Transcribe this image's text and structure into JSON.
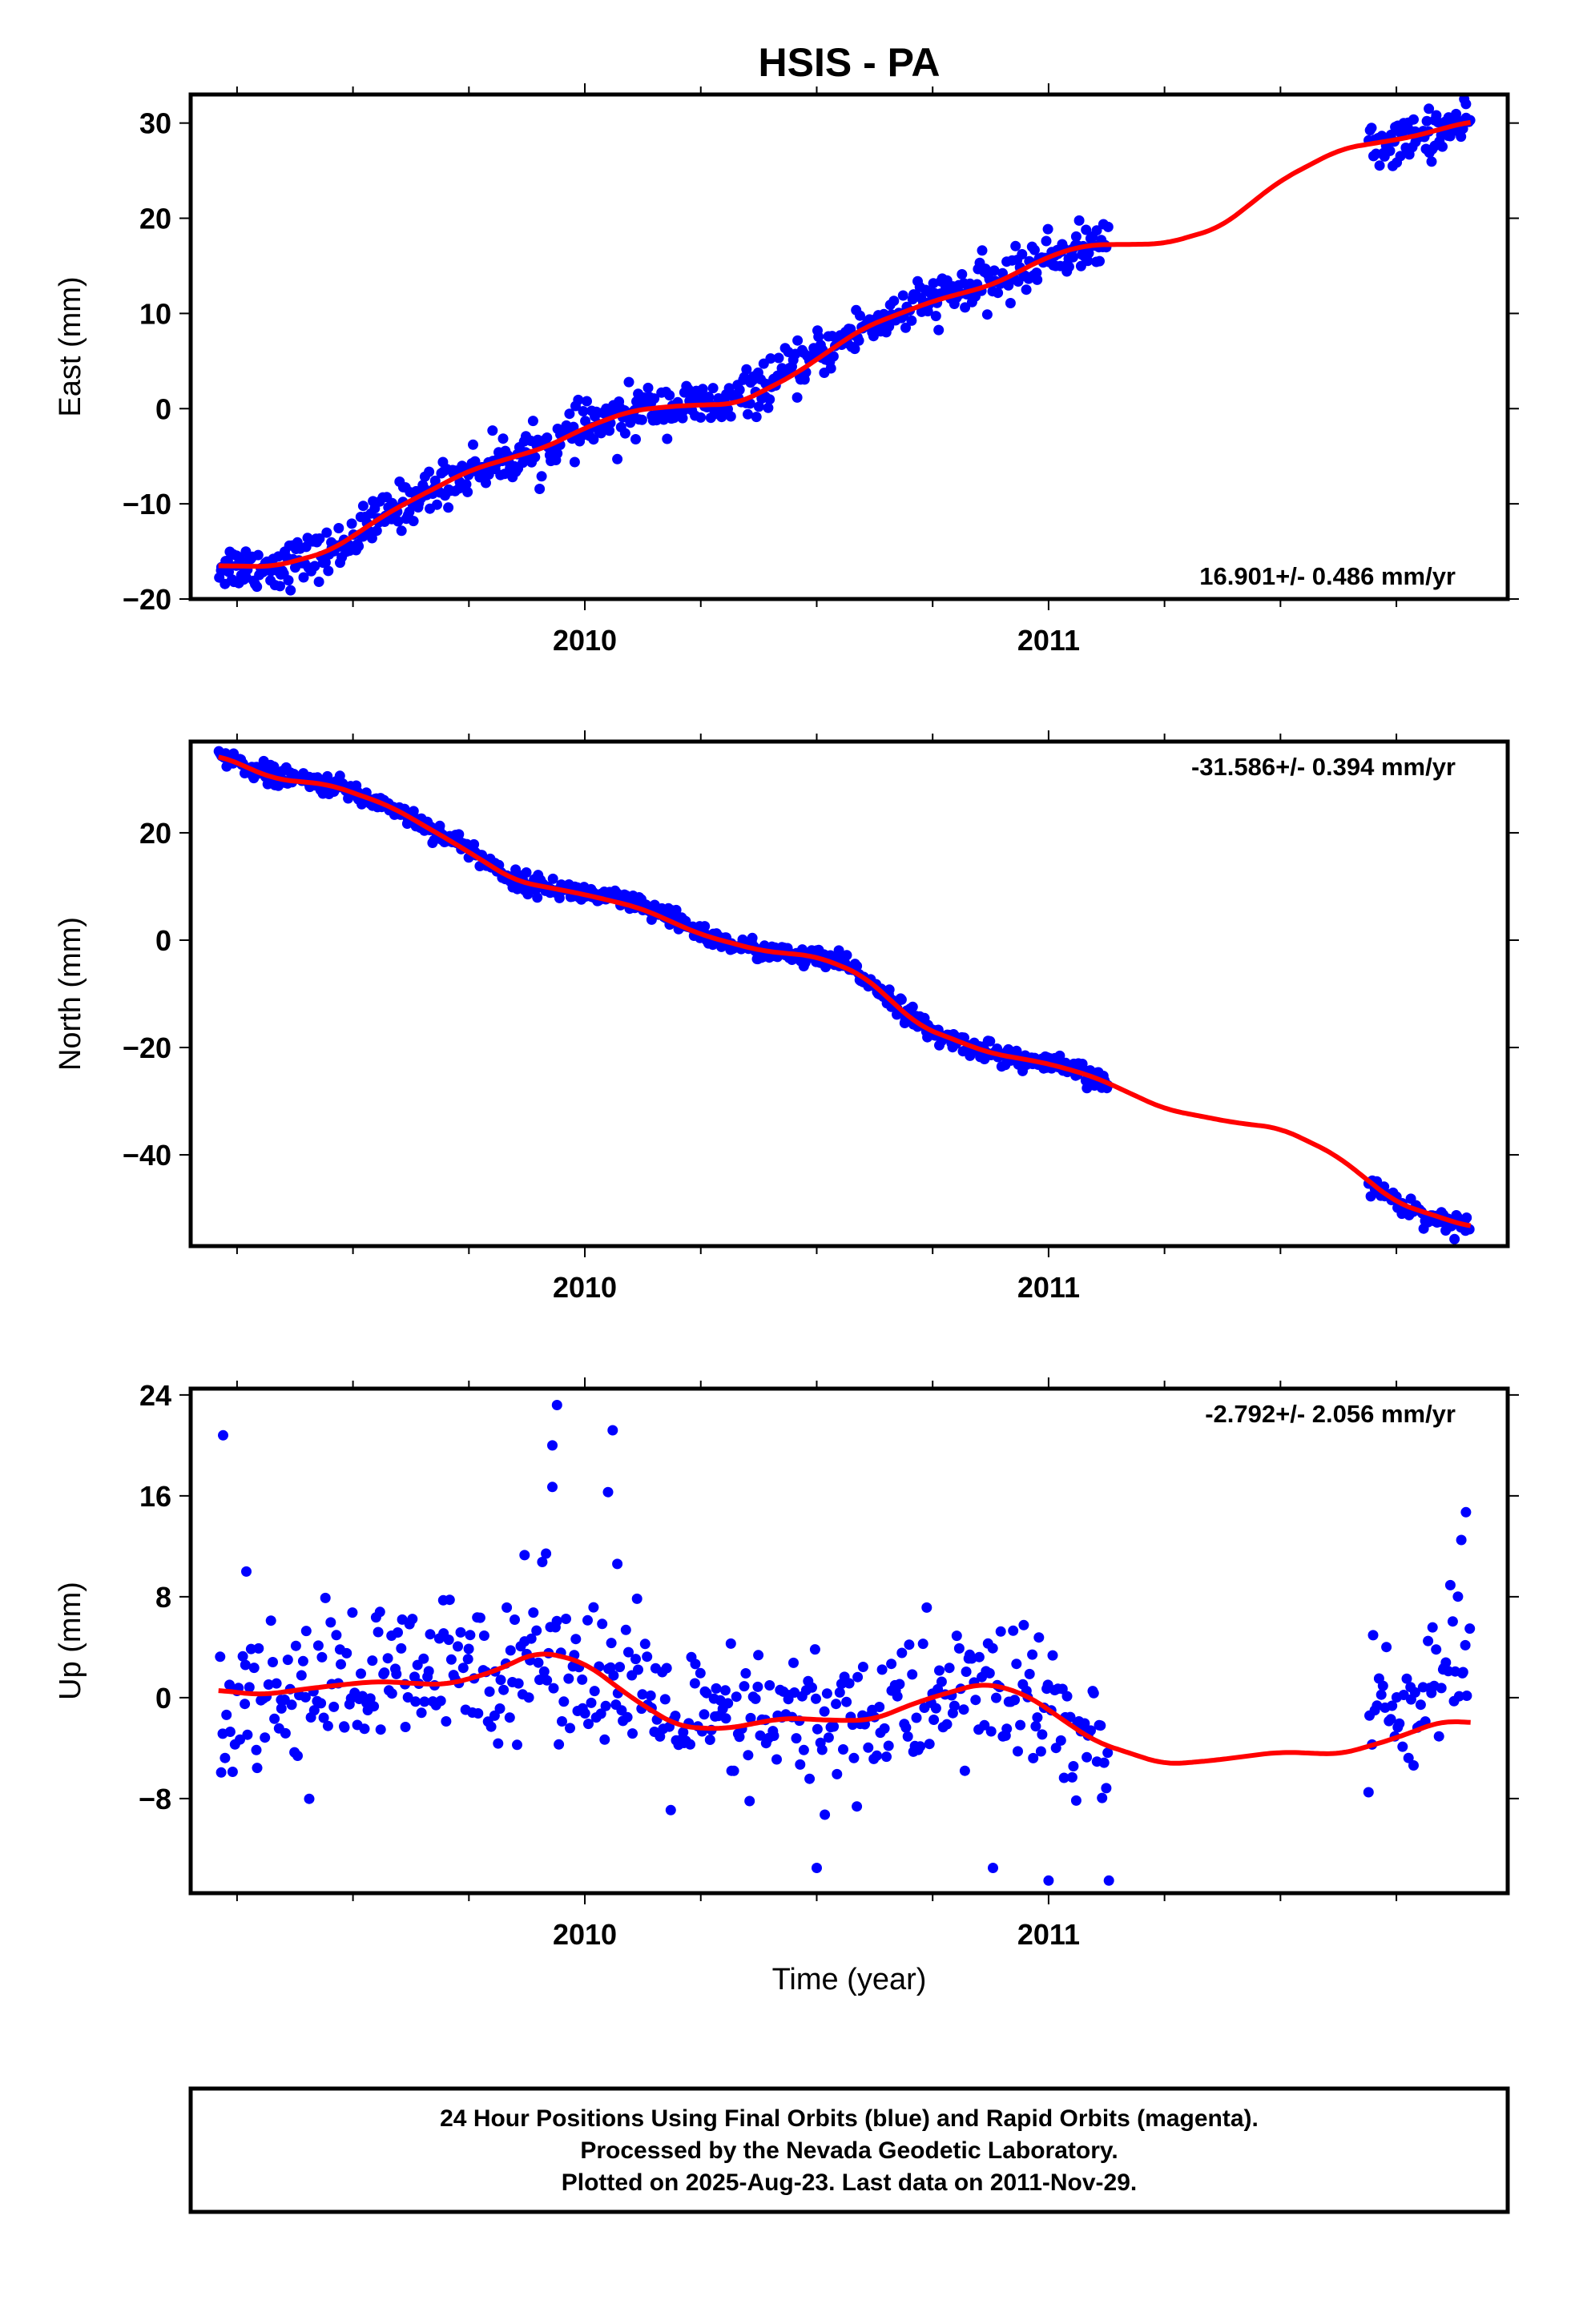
{
  "title": "HSIS - PA",
  "footer": {
    "line1": "24 Hour Positions Using Final Orbits (blue) and Rapid Orbits (magenta).",
    "line2": "Processed by the Nevada Geodetic Laboratory.",
    "line3": "Plotted on 2025-Aug-23. Last data on 2011-Nov-29."
  },
  "colors": {
    "data": "#0000ff",
    "fit": "#ff0000",
    "frame": "#000000"
  },
  "chart_data": [
    {
      "type": "scatter",
      "ylabel": "East (mm)",
      "xlabel": "",
      "xlim": [
        2009.15,
        2011.99
      ],
      "ylim": [
        -20,
        33
      ],
      "yticks": [
        30,
        20,
        10,
        0,
        -10,
        -20
      ],
      "ytick_labels": [
        "30",
        "20",
        "10",
        "0",
        "−10",
        "−20"
      ],
      "xticks": [
        2010,
        2011
      ],
      "xtick_labels": [
        "2010",
        "2011"
      ],
      "rate": "16.901+/- 0.486 mm/yr",
      "rate_position": "bottom-right",
      "series": [
        {
          "kind": "points",
          "segments": [
            [
              2009.21,
              2011.13
            ],
            [
              2011.69,
              2011.91
            ]
          ],
          "trend": [
            [
              2009.21,
              -16.5
            ],
            [
              2009.33,
              -16.6
            ],
            [
              2009.45,
              -15.2
            ],
            [
              2009.58,
              -10.8
            ],
            [
              2009.75,
              -6.5
            ],
            [
              2009.92,
              -4.0
            ],
            [
              2010.0,
              -2.0
            ],
            [
              2010.15,
              0.3
            ],
            [
              2010.3,
              0.3
            ],
            [
              2010.45,
              4.0
            ],
            [
              2010.6,
              8.5
            ],
            [
              2010.75,
              11.5
            ],
            [
              2010.9,
              13.5
            ],
            [
              2011.0,
              16.0
            ],
            [
              2011.13,
              17.5
            ],
            [
              2011.69,
              27.5
            ],
            [
              2011.8,
              28.5
            ],
            [
              2011.91,
              30.0
            ]
          ],
          "scatter": 1.2,
          "count": 720,
          "outliers": [
            [
              2010.07,
              -5.3
            ],
            [
              2011.82,
              31.5
            ],
            [
              2011.9,
              32.0
            ]
          ]
        },
        {
          "kind": "fit",
          "points": [
            [
              2009.21,
              -16.5
            ],
            [
              2009.33,
              -16.6
            ],
            [
              2009.45,
              -15.0
            ],
            [
              2009.58,
              -10.8
            ],
            [
              2009.75,
              -6.5
            ],
            [
              2009.92,
              -4.0
            ],
            [
              2010.0,
              -2.0
            ],
            [
              2010.1,
              -0.2
            ],
            [
              2010.2,
              0.3
            ],
            [
              2010.33,
              0.5
            ],
            [
              2010.45,
              3.5
            ],
            [
              2010.6,
              8.5
            ],
            [
              2010.75,
              11.3
            ],
            [
              2010.88,
              13.0
            ],
            [
              2011.0,
              16.0
            ],
            [
              2011.08,
              17.2
            ],
            [
              2011.25,
              17.3
            ],
            [
              2011.37,
              19.0
            ],
            [
              2011.5,
              24.0
            ],
            [
              2011.63,
              27.3
            ],
            [
              2011.78,
              28.5
            ],
            [
              2011.91,
              30.2
            ]
          ]
        }
      ]
    },
    {
      "type": "scatter",
      "ylabel": "North (mm)",
      "xlabel": "",
      "xlim": [
        2009.15,
        2011.99
      ],
      "ylim": [
        -57,
        37
      ],
      "yticks": [
        20,
        0,
        -20,
        -40
      ],
      "ytick_labels": [
        "20",
        "0",
        "−20",
        "−40"
      ],
      "xticks": [
        2010,
        2011
      ],
      "xtick_labels": [
        "2010",
        "2011"
      ],
      "rate": "-31.586+/- 0.394 mm/yr",
      "rate_position": "top-right",
      "series": [
        {
          "kind": "points",
          "segments": [
            [
              2009.21,
              2011.13
            ],
            [
              2011.69,
              2011.91
            ]
          ],
          "trend": [
            [
              2009.21,
              34.5
            ],
            [
              2009.33,
              30.5
            ],
            [
              2009.45,
              29.0
            ],
            [
              2009.58,
              25.0
            ],
            [
              2009.75,
              17.0
            ],
            [
              2009.85,
              11.0
            ],
            [
              2009.95,
              9.5
            ],
            [
              2010.1,
              7.0
            ],
            [
              2010.2,
              3.5
            ],
            [
              2010.3,
              -0.5
            ],
            [
              2010.45,
              -3.0
            ],
            [
              2010.55,
              -4.0
            ],
            [
              2010.62,
              -8.0
            ],
            [
              2010.75,
              -17.5
            ],
            [
              2010.9,
              -21.5
            ],
            [
              2011.05,
              -24.0
            ],
            [
              2011.13,
              -27.0
            ],
            [
              2011.69,
              -45.5
            ],
            [
              2011.8,
              -51.0
            ],
            [
              2011.91,
              -53.5
            ]
          ],
          "scatter": 0.9,
          "count": 740,
          "outliers": []
        },
        {
          "kind": "fit",
          "points": [
            [
              2009.21,
              34.5
            ],
            [
              2009.33,
              30.0
            ],
            [
              2009.45,
              29.0
            ],
            [
              2009.58,
              25.0
            ],
            [
              2009.72,
              18.0
            ],
            [
              2009.85,
              11.0
            ],
            [
              2010.0,
              8.5
            ],
            [
              2010.12,
              6.0
            ],
            [
              2010.25,
              1.0
            ],
            [
              2010.38,
              -2.0
            ],
            [
              2010.5,
              -3.0
            ],
            [
              2010.6,
              -6.5
            ],
            [
              2010.72,
              -16.0
            ],
            [
              2010.87,
              -21.0
            ],
            [
              2011.0,
              -23.0
            ],
            [
              2011.1,
              -25.5
            ],
            [
              2011.25,
              -31.5
            ],
            [
              2011.4,
              -34.0
            ],
            [
              2011.5,
              -35.0
            ],
            [
              2011.62,
              -40.0
            ],
            [
              2011.75,
              -49.0
            ],
            [
              2011.91,
              -53.5
            ]
          ]
        }
      ]
    },
    {
      "type": "scatter",
      "ylabel": "Up (mm)",
      "xlabel": "Time (year)",
      "xlim": [
        2009.15,
        2011.99
      ],
      "ylim": [
        -15.5,
        24.5
      ],
      "yticks": [
        24,
        16,
        8,
        0,
        -8
      ],
      "ytick_labels": [
        "24",
        "16",
        "8",
        "0",
        "−8"
      ],
      "xticks": [
        2010,
        2011
      ],
      "xtick_labels": [
        "2010",
        "2011"
      ],
      "rate": "-2.792+/- 2.056 mm/yr",
      "rate_position": "top-right",
      "series": [
        {
          "kind": "points",
          "segments": [
            [
              2009.21,
              2011.13
            ],
            [
              2011.69,
              2011.91
            ]
          ],
          "trend": [
            [
              2009.21,
              0.5
            ],
            [
              2009.33,
              0.4
            ],
            [
              2009.45,
              1.0
            ],
            [
              2009.6,
              1.3
            ],
            [
              2009.75,
              2.0
            ],
            [
              2009.9,
              3.8
            ],
            [
              2010.0,
              2.8
            ],
            [
              2010.12,
              -0.5
            ],
            [
              2010.25,
              -2.5
            ],
            [
              2010.4,
              -2.0
            ],
            [
              2010.55,
              -2.0
            ],
            [
              2010.72,
              -0.5
            ],
            [
              2010.88,
              1.0
            ],
            [
              2011.0,
              -1.0
            ],
            [
              2011.13,
              -5.0
            ],
            [
              2011.69,
              -1.5
            ],
            [
              2011.8,
              0.0
            ],
            [
              2011.91,
              4.0
            ]
          ],
          "scatter": 3.0,
          "count": 520,
          "outliers": [
            [
              2009.22,
              20.8
            ],
            [
              2009.94,
              23.2
            ],
            [
              2009.93,
              20.0
            ],
            [
              2009.93,
              16.7
            ],
            [
              2010.06,
              21.2
            ],
            [
              2010.05,
              16.3
            ],
            [
              2009.87,
              11.3
            ],
            [
              2010.07,
              10.6
            ],
            [
              2009.27,
              10.0
            ],
            [
              2011.9,
              14.7
            ],
            [
              2011.89,
              12.5
            ],
            [
              2010.5,
              -13.5
            ],
            [
              2011.0,
              -14.5
            ],
            [
              2011.13,
              -14.5
            ],
            [
              2010.88,
              -13.5
            ],
            [
              2011.69,
              -7.5
            ]
          ]
        },
        {
          "kind": "fit",
          "points": [
            [
              2009.21,
              0.6
            ],
            [
              2009.3,
              0.2
            ],
            [
              2009.42,
              0.8
            ],
            [
              2009.55,
              1.3
            ],
            [
              2009.7,
              1.0
            ],
            [
              2009.8,
              2.0
            ],
            [
              2009.9,
              3.7
            ],
            [
              2010.0,
              2.8
            ],
            [
              2010.1,
              0.0
            ],
            [
              2010.2,
              -2.3
            ],
            [
              2010.3,
              -2.5
            ],
            [
              2010.43,
              -1.6
            ],
            [
              2010.53,
              -1.8
            ],
            [
              2010.62,
              -1.8
            ],
            [
              2010.72,
              -0.3
            ],
            [
              2010.86,
              1.2
            ],
            [
              2010.95,
              0.3
            ],
            [
              2011.1,
              -3.5
            ],
            [
              2011.25,
              -5.3
            ],
            [
              2011.35,
              -5.0
            ],
            [
              2011.5,
              -4.3
            ],
            [
              2011.63,
              -4.5
            ],
            [
              2011.75,
              -3.2
            ],
            [
              2011.85,
              -1.8
            ],
            [
              2011.91,
              -2.0
            ]
          ]
        }
      ]
    }
  ]
}
